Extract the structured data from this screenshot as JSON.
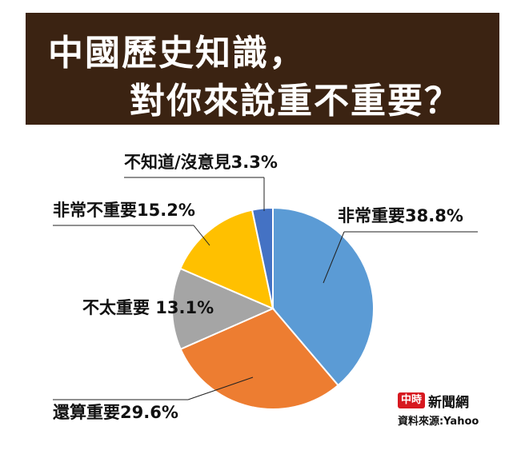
{
  "header": {
    "line1": "中國歷史知識，",
    "line2": "對你來說重不重要？"
  },
  "chart_data": {
    "type": "pie",
    "title": "中國歷史知識，對你來說重不重要？",
    "start_angle_deg": 0,
    "direction": "clockwise",
    "slices": [
      {
        "label": "非常重要",
        "value": 38.8,
        "display": "非常重要38.8%",
        "color": "#5b9bd5"
      },
      {
        "label": "還算重要",
        "value": 29.6,
        "display": "還算重要29.6%",
        "color": "#ed7d31"
      },
      {
        "label": "不太重要",
        "value": 13.1,
        "display": "不太重要 13.1%",
        "color": "#a5a5a5"
      },
      {
        "label": "非常不重要",
        "value": 15.2,
        "display": "非常不重要15.2%",
        "color": "#ffc000"
      },
      {
        "label": "不知道/沒意見",
        "value": 3.3,
        "display": "不知道/沒意見3.3%",
        "color": "#4472c4"
      }
    ]
  },
  "footer": {
    "brand_badge": "中時",
    "brand_name": "新聞網",
    "source": "資料來源:Yahoo"
  }
}
